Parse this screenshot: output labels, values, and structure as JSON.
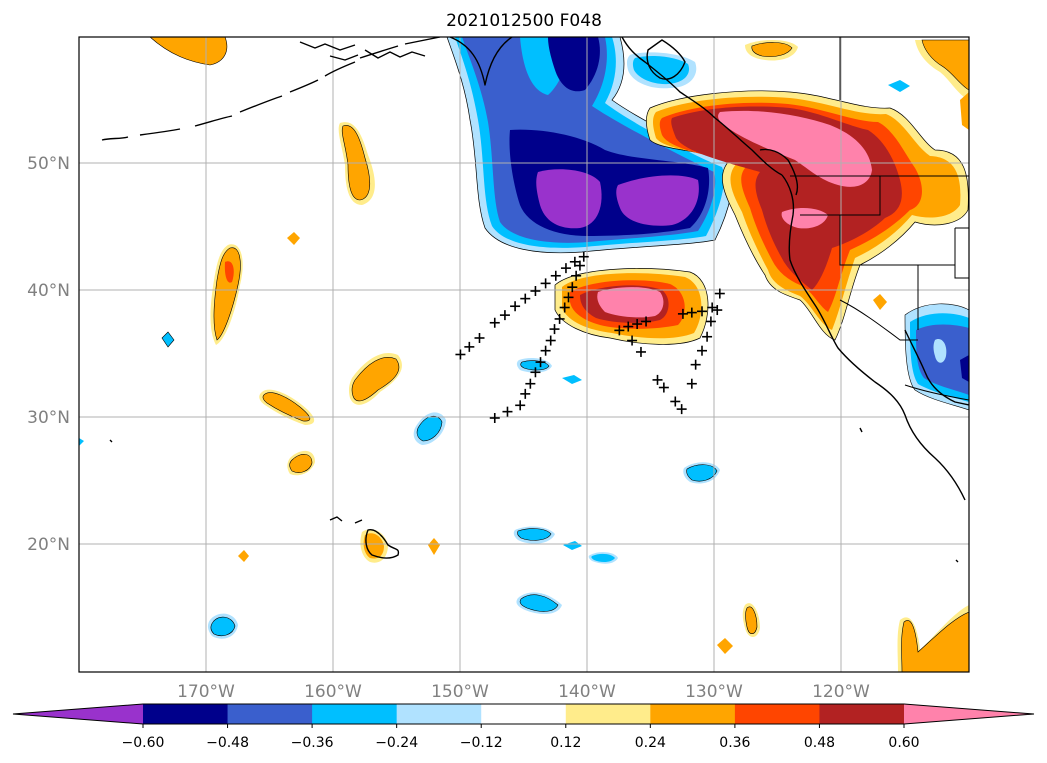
{
  "title": "2021012500 F048",
  "map": {
    "lat_labels": [
      "20°N",
      "30°N",
      "40°N",
      "50°N"
    ],
    "lat_values": [
      20,
      30,
      40,
      50
    ],
    "lon_labels": [
      "170°W",
      "160°W",
      "150°W",
      "140°W",
      "130°W",
      "120°W"
    ],
    "lon_values": [
      -170,
      -160,
      -150,
      -140,
      -130,
      -120
    ],
    "extent": {
      "lon": [
        -180,
        -110
      ],
      "lat": [
        10,
        60
      ]
    },
    "gridlines": true
  },
  "colorbar": {
    "extend": "both",
    "tick_labels": [
      "−0.60",
      "−0.48",
      "−0.36",
      "−0.24",
      "−0.12",
      "0.12",
      "0.24",
      "0.36",
      "0.48",
      "0.60"
    ],
    "levels": [
      -0.6,
      -0.48,
      -0.36,
      -0.24,
      -0.12,
      0.12,
      0.24,
      0.36,
      0.48,
      0.6
    ],
    "colors": [
      "#9932cc",
      "#00008b",
      "#3a5fcd",
      "#00bfff",
      "#b0e2ff",
      "#ffffff",
      "#ffec8b",
      "#ffa500",
      "#ff4500",
      "#b22222",
      "#ff82ab"
    ]
  },
  "markers": {
    "symbol": "+",
    "points": [
      [
        -150,
        35
      ],
      [
        -149.3,
        35.6
      ],
      [
        -148.5,
        36.3
      ],
      [
        -147.3,
        37.5
      ],
      [
        -146.5,
        38.1
      ],
      [
        -145.7,
        38.8
      ],
      [
        -144.9,
        39.4
      ],
      [
        -144.1,
        40
      ],
      [
        -143.3,
        40.6
      ],
      [
        -142.5,
        41.2
      ],
      [
        -141.7,
        41.8
      ],
      [
        -141,
        42.3
      ],
      [
        -140.3,
        42.7
      ],
      [
        -147.3,
        30
      ],
      [
        -146.3,
        30.5
      ],
      [
        -145.3,
        31
      ],
      [
        -144.9,
        31.9
      ],
      [
        -144.5,
        32.7
      ],
      [
        -144.1,
        33.6
      ],
      [
        -143.7,
        34.4
      ],
      [
        -143.3,
        35.3
      ],
      [
        -142.9,
        36.1
      ],
      [
        -142.6,
        37
      ],
      [
        -142.2,
        37.8
      ],
      [
        -141.8,
        38.7
      ],
      [
        -141.5,
        39.5
      ],
      [
        -141.2,
        40.3
      ],
      [
        -140.9,
        41.2
      ],
      [
        -140.6,
        42
      ],
      [
        -137.5,
        36.9
      ],
      [
        -136.8,
        37.2
      ],
      [
        -136.1,
        37.4
      ],
      [
        -135.4,
        37.6
      ],
      [
        -134.5,
        33
      ],
      [
        -134,
        32.4
      ],
      [
        -136.5,
        36.1
      ],
      [
        -135.8,
        35.2
      ],
      [
        -133.1,
        31.3
      ],
      [
        -132.6,
        30.7
      ],
      [
        -131.8,
        32.7
      ],
      [
        -131.5,
        34.2
      ],
      [
        -131,
        35.3
      ],
      [
        -130.6,
        36.4
      ],
      [
        -130.3,
        37.6
      ],
      [
        -129.8,
        38.5
      ],
      [
        -129.6,
        39.8
      ],
      [
        -132.5,
        38.2
      ],
      [
        -131.8,
        38.3
      ],
      [
        -131,
        38.4
      ],
      [
        -130.2,
        38.7
      ]
    ]
  }
}
